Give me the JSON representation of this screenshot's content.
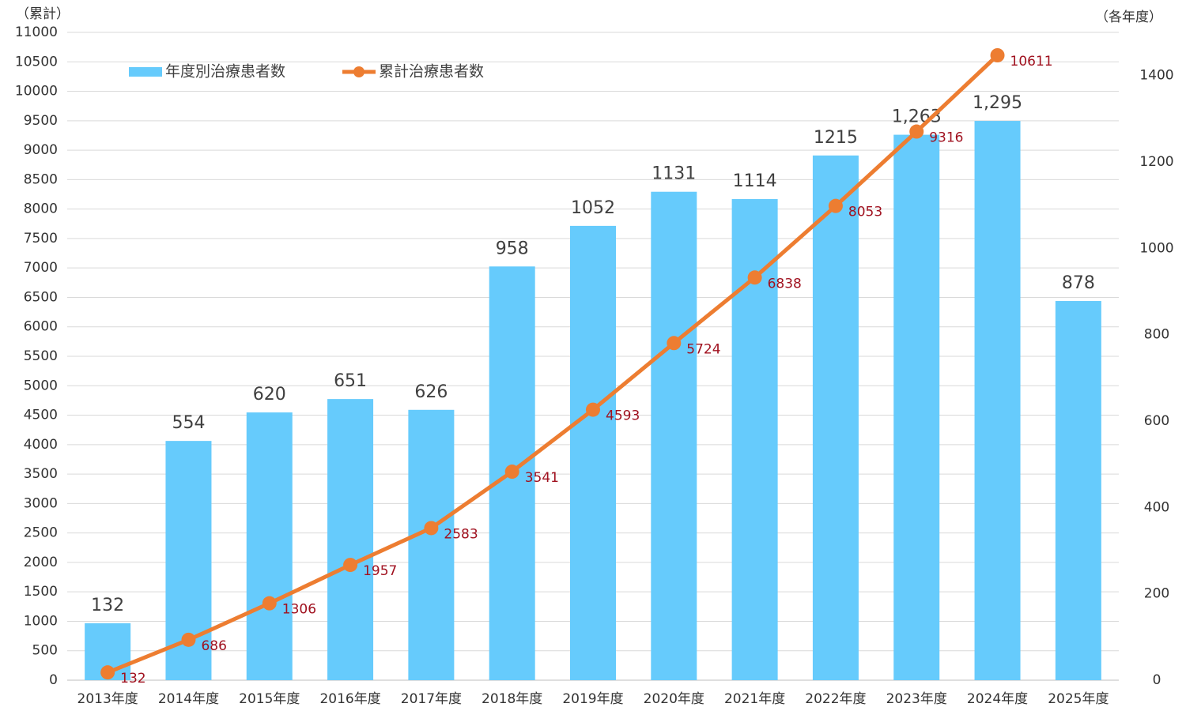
{
  "chart_data": {
    "type": "bar_line",
    "y_label": "（累計）",
    "y2_label": "（各年度）",
    "categories": [
      "2013年度",
      "2014年度",
      "2015年度",
      "2016年度",
      "2017年度",
      "2018年度",
      "2019年度",
      "2020年度",
      "2021年度",
      "2022年度",
      "2023年度",
      "2024年度",
      "2025年度"
    ],
    "series": [
      {
        "name": "年度別治療患者数",
        "type": "bar",
        "axis": "y2",
        "color": "#66cbfc",
        "values": [
          132,
          554,
          620,
          651,
          626,
          958,
          1052,
          1131,
          1114,
          1215,
          1263,
          1295,
          878
        ],
        "value_labels": [
          "132",
          "554",
          "620",
          "651",
          "626",
          "958",
          "1052",
          "1131",
          "1114",
          "1215",
          "1,263",
          "1,295",
          "878"
        ]
      },
      {
        "name": "累計治療患者数",
        "type": "line",
        "axis": "y",
        "color": "#ed7d31",
        "values": [
          132,
          686,
          1306,
          1957,
          2583,
          3541,
          4593,
          5724,
          6838,
          8053,
          9316,
          10611,
          null
        ]
      }
    ],
    "ylim": [
      0,
      11000
    ],
    "yticks": [
      0,
      500,
      1000,
      1500,
      2000,
      2500,
      3000,
      3500,
      4000,
      4500,
      5000,
      5500,
      6000,
      6500,
      7000,
      7500,
      8000,
      8500,
      9000,
      9500,
      10000,
      10500,
      11000
    ],
    "y2lim": [
      0,
      1500
    ],
    "y2ticks": [
      0,
      200,
      400,
      600,
      800,
      1000,
      1200,
      1400
    ],
    "grid": true,
    "legend": "top-left"
  }
}
